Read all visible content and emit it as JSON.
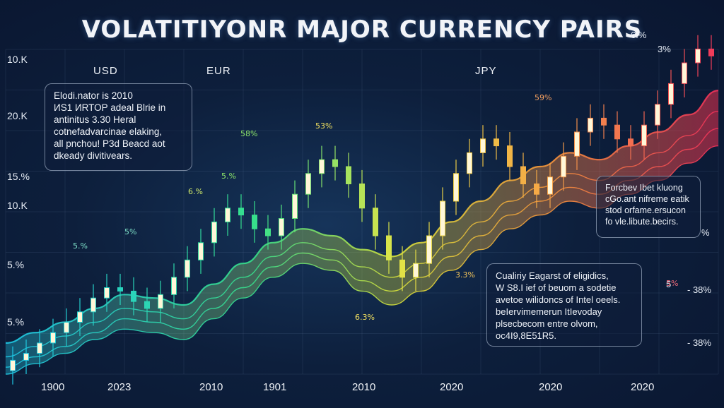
{
  "title": "VOLATITIYONR MAJOR CURRENCY PAIRS",
  "currencies": [
    "USD",
    "EUR",
    "JPY"
  ],
  "y_labels_left": [
    "10.K",
    "20.K",
    "15.%",
    "10.K",
    "5.%",
    "5.%"
  ],
  "y_labels_right": [
    "6.%",
    "3%",
    "%",
    "5",
    "- 38%",
    "- 38%"
  ],
  "x_labels": [
    "1900",
    "2023",
    "2010",
    "1901",
    "2010",
    "2020",
    "2020",
    "2020"
  ],
  "annotations": {
    "top_left": [
      "Elodi.nator is 2010",
      "ИS1 ИRTOP adeal Blrie in",
      "antinitus 3.30 Heral",
      "cotnefadvarcinae elaking,",
      "all pnchou! P3d Beacd aot",
      "dkeady divitivears."
    ],
    "right": [
      "Forcbev Ibet kluong",
      "cGo.ant nifreme eatik",
      "stod orfame.ersucon",
      "fo vle.libute.becirs."
    ],
    "bottom": [
      "Cualiriy Eagarst of eligidics,",
      "W S8.I ief of beuom  a sodetie",
      "avetoe wilidoncs of Intel oeels.",
      "beIervimemerun ItIevoday",
      "plsecbecom entre olvom,",
      "oc4I9,8E51R5."
    ]
  },
  "pct_markers": [
    "58%",
    "5.%",
    "5.%",
    "6.%",
    "5%",
    "53%",
    "5%",
    "6.3%",
    "3.3%",
    "59%"
  ],
  "chart_data": {
    "type": "line",
    "title": "VOLATITIYONR MAJOR CURRENCY PAIRS",
    "x_tick_labels": [
      "1900",
      "2023",
      "2010",
      "1901",
      "2010",
      "2020",
      "2020",
      "2020"
    ],
    "series": [
      {
        "values": [
          9,
          12,
          15,
          19,
          23,
          22,
          20,
          26,
          32,
          38,
          42,
          40,
          36,
          34,
          38,
          44,
          50,
          56,
          60,
          64,
          62,
          66,
          70,
          75,
          82
        ]
      },
      {
        "values": [
          5,
          8,
          11,
          15,
          19,
          18,
          16,
          22,
          28,
          34,
          38,
          36,
          31,
          28,
          32,
          38,
          44,
          50,
          54,
          58,
          56,
          60,
          64,
          69,
          76
        ]
      },
      {
        "values": [
          2,
          5,
          8,
          12,
          16,
          15,
          13,
          19,
          25,
          31,
          35,
          33,
          27,
          24,
          28,
          34,
          40,
          46,
          50,
          54,
          52,
          56,
          60,
          65,
          71
        ]
      },
      {
        "values": [
          0,
          3,
          6,
          10,
          13,
          12,
          10,
          16,
          22,
          28,
          32,
          30,
          24,
          20,
          24,
          30,
          36,
          42,
          46,
          50,
          48,
          52,
          56,
          61,
          66
        ]
      }
    ],
    "candles_close": [
      4,
      6,
      9,
      12,
      15,
      18,
      22,
      25,
      24,
      21,
      19,
      23,
      28,
      33,
      38,
      44,
      48,
      46,
      42,
      40,
      45,
      52,
      58,
      62,
      60,
      55,
      48,
      40,
      33,
      28,
      32,
      40,
      50,
      58,
      64,
      68,
      66,
      60,
      55,
      52,
      57,
      63,
      70,
      74,
      72,
      68,
      66,
      72,
      78,
      84,
      90,
      94,
      92
    ]
  },
  "colors": {
    "cool": "#2fe3f0",
    "mid": "#a8e84a",
    "warm": "#f5c542",
    "hot": "#f0305a"
  }
}
